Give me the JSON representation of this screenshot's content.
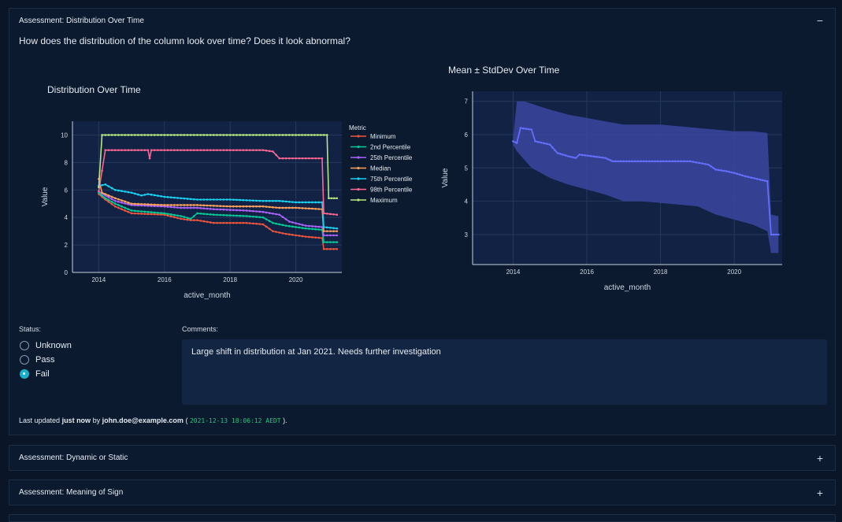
{
  "assessment1": {
    "title": "Assessment: Distribution Over Time",
    "toggle": "−",
    "question": "How does the distribution of the column look over time? Does it look abnormal?",
    "status_label": "Status:",
    "status_options": [
      "Unknown",
      "Pass",
      "Fail"
    ],
    "selected_status": "Fail",
    "comments_label": "Comments:",
    "comment": "Large shift in distribution at Jan 2021. Needs further investigation",
    "updated_prefix": "Last updated",
    "updated_when": "just now",
    "updated_by_word": "by",
    "updated_user": "john.doe@example.com",
    "updated_open": "(",
    "updated_timestamp": "2021-12-13 18:06:12 AEDT",
    "updated_close": ")."
  },
  "assessment2": {
    "title": "Assessment: Dynamic or Static",
    "toggle": "+"
  },
  "assessment3": {
    "title": "Assessment: Meaning of Sign",
    "toggle": "+"
  },
  "colors": {
    "minimum": "#ef553b",
    "p2": "#00cc96",
    "p25": "#ab63fa",
    "median": "#ffa15a",
    "p75": "#19d3f3",
    "p98": "#ff6692",
    "maximum": "#b6e880",
    "mean": "#636efa",
    "band": "#3b45a0"
  },
  "chart_data": [
    {
      "type": "line",
      "title": "Distribution Over Time",
      "xlabel": "active_month",
      "ylabel": "Value",
      "xlim": [
        2013.2,
        2021.4
      ],
      "ylim": [
        0,
        11
      ],
      "xticks": [
        2014,
        2016,
        2018,
        2020
      ],
      "yticks": [
        0,
        2,
        4,
        6,
        8,
        10
      ],
      "legend_title": "Metric",
      "series": [
        {
          "name": "Minimum",
          "key": "minimum",
          "points": [
            [
              2014.0,
              5.7
            ],
            [
              2014.2,
              5.3
            ],
            [
              2014.5,
              4.8
            ],
            [
              2015.0,
              4.3
            ],
            [
              2016.0,
              4.2
            ],
            [
              2016.5,
              3.9
            ],
            [
              2016.8,
              3.8
            ],
            [
              2017.0,
              3.8
            ],
            [
              2017.5,
              3.6
            ],
            [
              2018.5,
              3.6
            ],
            [
              2019.0,
              3.5
            ],
            [
              2019.3,
              3.0
            ],
            [
              2019.7,
              2.8
            ],
            [
              2020.0,
              2.7
            ],
            [
              2020.3,
              2.6
            ],
            [
              2020.8,
              2.5
            ],
            [
              2020.85,
              1.7
            ],
            [
              2021.25,
              1.7
            ]
          ]
        },
        {
          "name": "2nd Percentile",
          "key": "p2",
          "points": [
            [
              2014.0,
              5.8
            ],
            [
              2014.2,
              5.4
            ],
            [
              2014.5,
              5.0
            ],
            [
              2015.0,
              4.5
            ],
            [
              2016.0,
              4.3
            ],
            [
              2016.5,
              4.1
            ],
            [
              2016.8,
              3.9
            ],
            [
              2017.0,
              4.3
            ],
            [
              2017.5,
              4.2
            ],
            [
              2018.5,
              4.1
            ],
            [
              2019.0,
              4.0
            ],
            [
              2019.3,
              3.6
            ],
            [
              2019.7,
              3.4
            ],
            [
              2020.0,
              3.3
            ],
            [
              2020.3,
              3.2
            ],
            [
              2020.8,
              3.1
            ],
            [
              2020.85,
              2.2
            ],
            [
              2021.25,
              2.2
            ]
          ]
        },
        {
          "name": "25th Percentile",
          "key": "p25",
          "points": [
            [
              2014.0,
              5.9
            ],
            [
              2014.2,
              5.6
            ],
            [
              2014.5,
              5.2
            ],
            [
              2015.0,
              4.9
            ],
            [
              2016.0,
              4.8
            ],
            [
              2016.5,
              4.7
            ],
            [
              2017.0,
              4.7
            ],
            [
              2017.5,
              4.6
            ],
            [
              2018.5,
              4.5
            ],
            [
              2019.0,
              4.4
            ],
            [
              2019.5,
              4.2
            ],
            [
              2019.8,
              3.7
            ],
            [
              2020.3,
              3.4
            ],
            [
              2020.8,
              3.3
            ],
            [
              2020.85,
              2.7
            ],
            [
              2021.25,
              2.7
            ]
          ]
        },
        {
          "name": "Median",
          "key": "median",
          "points": [
            [
              2014.0,
              6.8
            ],
            [
              2014.1,
              5.8
            ],
            [
              2014.5,
              5.4
            ],
            [
              2015.0,
              5.0
            ],
            [
              2016.0,
              4.9
            ],
            [
              2017.0,
              4.9
            ],
            [
              2018.0,
              4.8
            ],
            [
              2019.0,
              4.8
            ],
            [
              2019.5,
              4.7
            ],
            [
              2020.0,
              4.7
            ],
            [
              2020.8,
              4.6
            ],
            [
              2020.85,
              3.0
            ],
            [
              2021.25,
              3.0
            ]
          ]
        },
        {
          "name": "75th Percentile",
          "key": "p75",
          "points": [
            [
              2014.0,
              6.3
            ],
            [
              2014.2,
              6.4
            ],
            [
              2014.5,
              6.0
            ],
            [
              2015.0,
              5.8
            ],
            [
              2015.3,
              5.6
            ],
            [
              2015.5,
              5.7
            ],
            [
              2016.0,
              5.5
            ],
            [
              2016.5,
              5.4
            ],
            [
              2017.0,
              5.3
            ],
            [
              2018.0,
              5.3
            ],
            [
              2019.0,
              5.2
            ],
            [
              2019.5,
              5.2
            ],
            [
              2020.0,
              5.1
            ],
            [
              2020.8,
              5.1
            ],
            [
              2020.85,
              3.3
            ],
            [
              2021.25,
              3.2
            ]
          ]
        },
        {
          "name": "98th Percentile",
          "key": "p98",
          "points": [
            [
              2014.0,
              5.9
            ],
            [
              2014.2,
              8.9
            ],
            [
              2015.5,
              8.9
            ],
            [
              2015.55,
              8.3
            ],
            [
              2015.6,
              8.9
            ],
            [
              2016.0,
              8.9
            ],
            [
              2018.0,
              8.9
            ],
            [
              2019.0,
              8.9
            ],
            [
              2019.3,
              8.8
            ],
            [
              2019.5,
              8.3
            ],
            [
              2020.0,
              8.3
            ],
            [
              2020.8,
              8.3
            ],
            [
              2020.85,
              4.3
            ],
            [
              2021.25,
              4.2
            ]
          ]
        },
        {
          "name": "Maximum",
          "key": "maximum",
          "points": [
            [
              2014.0,
              6.2
            ],
            [
              2014.1,
              10.0
            ],
            [
              2016.0,
              10.0
            ],
            [
              2018.0,
              10.0
            ],
            [
              2020.0,
              10.0
            ],
            [
              2020.95,
              10.0
            ],
            [
              2021.0,
              5.4
            ],
            [
              2021.25,
              5.4
            ]
          ]
        }
      ]
    },
    {
      "type": "area",
      "title": "Mean ± StdDev Over Time",
      "xlabel": "active_month",
      "ylabel": "Value",
      "xlim": [
        2012.9,
        2021.3
      ],
      "ylim": [
        2.1,
        7.3
      ],
      "xticks": [
        2014,
        2016,
        2018,
        2020
      ],
      "yticks": [
        3,
        4,
        5,
        6,
        7
      ],
      "mean": [
        [
          2014.0,
          5.8
        ],
        [
          2014.1,
          5.75
        ],
        [
          2014.2,
          6.2
        ],
        [
          2014.5,
          6.15
        ],
        [
          2014.6,
          5.8
        ],
        [
          2015.0,
          5.7
        ],
        [
          2015.2,
          5.45
        ],
        [
          2015.5,
          5.35
        ],
        [
          2015.7,
          5.3
        ],
        [
          2015.8,
          5.4
        ],
        [
          2016.5,
          5.3
        ],
        [
          2016.7,
          5.2
        ],
        [
          2017.0,
          5.2
        ],
        [
          2018.0,
          5.2
        ],
        [
          2018.8,
          5.2
        ],
        [
          2019.3,
          5.1
        ],
        [
          2019.5,
          4.95
        ],
        [
          2019.8,
          4.9
        ],
        [
          2020.0,
          4.85
        ],
        [
          2020.3,
          4.75
        ],
        [
          2020.7,
          4.65
        ],
        [
          2020.9,
          4.6
        ],
        [
          2021.0,
          3.0
        ],
        [
          2021.2,
          3.0
        ]
      ],
      "upper": [
        [
          2014.0,
          5.9
        ],
        [
          2014.1,
          7.0
        ],
        [
          2014.3,
          7.0
        ],
        [
          2015.0,
          6.75
        ],
        [
          2015.5,
          6.6
        ],
        [
          2016.0,
          6.5
        ],
        [
          2016.5,
          6.4
        ],
        [
          2017.0,
          6.3
        ],
        [
          2018.0,
          6.3
        ],
        [
          2019.0,
          6.2
        ],
        [
          2019.5,
          6.15
        ],
        [
          2020.0,
          6.1
        ],
        [
          2020.5,
          6.1
        ],
        [
          2020.9,
          6.05
        ],
        [
          2021.0,
          3.6
        ],
        [
          2021.2,
          3.55
        ]
      ],
      "lower": [
        [
          2014.0,
          5.7
        ],
        [
          2014.1,
          5.5
        ],
        [
          2014.5,
          5.0
        ],
        [
          2015.0,
          4.7
        ],
        [
          2015.5,
          4.5
        ],
        [
          2016.0,
          4.35
        ],
        [
          2016.5,
          4.2
        ],
        [
          2017.0,
          4.0
        ],
        [
          2017.5,
          4.0
        ],
        [
          2018.0,
          3.95
        ],
        [
          2018.5,
          3.9
        ],
        [
          2019.0,
          3.85
        ],
        [
          2019.5,
          3.6
        ],
        [
          2020.0,
          3.45
        ],
        [
          2020.5,
          3.3
        ],
        [
          2020.9,
          3.1
        ],
        [
          2021.0,
          2.45
        ],
        [
          2021.2,
          2.45
        ]
      ]
    }
  ]
}
